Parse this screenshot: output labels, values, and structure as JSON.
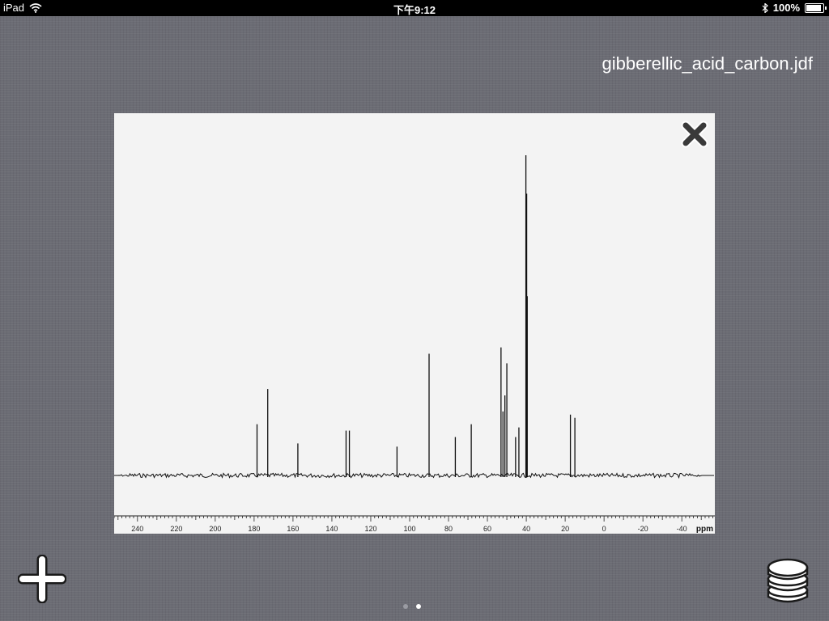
{
  "status_bar": {
    "device": "iPad",
    "time": "下午9:12",
    "battery_text": "100%",
    "battery_level": 1.0
  },
  "file_title": "gibberellic_acid_carbon.jdf",
  "icons": {
    "wifi": "wifi-icon",
    "bluetooth": "bluetooth-icon",
    "close": "close-icon",
    "add": "plus-icon",
    "database": "database-icon"
  },
  "page_indicator": {
    "count": 2,
    "current": 2
  },
  "chart_data": {
    "type": "line",
    "xlabel": "ppm",
    "x_range": [
      252,
      -57
    ],
    "x_reversed": true,
    "tick_labels": [
      240,
      220,
      200,
      180,
      160,
      140,
      120,
      100,
      80,
      60,
      40,
      20,
      0,
      -20,
      -40
    ],
    "minor_tick_step": 2,
    "peaks": [
      {
        "ppm": 178.5,
        "intensity": 0.16
      },
      {
        "ppm": 173.0,
        "intensity": 0.27
      },
      {
        "ppm": 157.5,
        "intensity": 0.1
      },
      {
        "ppm": 132.7,
        "intensity": 0.14
      },
      {
        "ppm": 131.0,
        "intensity": 0.14
      },
      {
        "ppm": 106.5,
        "intensity": 0.09
      },
      {
        "ppm": 90.0,
        "intensity": 0.38
      },
      {
        "ppm": 76.5,
        "intensity": 0.12
      },
      {
        "ppm": 68.3,
        "intensity": 0.16
      },
      {
        "ppm": 53.0,
        "intensity": 0.4
      },
      {
        "ppm": 52.0,
        "intensity": 0.2
      },
      {
        "ppm": 51.0,
        "intensity": 0.25
      },
      {
        "ppm": 50.0,
        "intensity": 0.35
      },
      {
        "ppm": 45.5,
        "intensity": 0.12
      },
      {
        "ppm": 43.8,
        "intensity": 0.15
      },
      {
        "ppm": 40.2,
        "intensity": 1.0
      },
      {
        "ppm": 39.8,
        "intensity": 0.88
      },
      {
        "ppm": 39.5,
        "intensity": 0.56
      },
      {
        "ppm": 17.3,
        "intensity": 0.19
      },
      {
        "ppm": 15.0,
        "intensity": 0.18
      }
    ]
  }
}
